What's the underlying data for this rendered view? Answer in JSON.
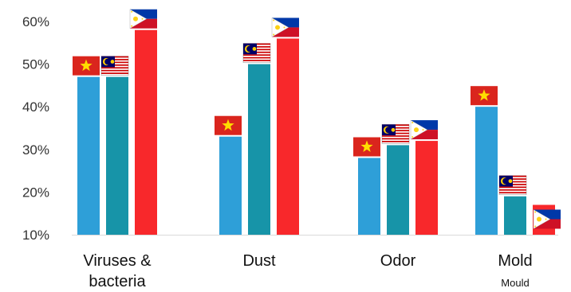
{
  "chart_data": {
    "type": "bar",
    "categories": [
      "Viruses & bacteria",
      "Dust",
      "Odor",
      "Mold"
    ],
    "category_lines": [
      [
        "Viruses &",
        "bacteria"
      ],
      [
        "Dust"
      ],
      [
        "Odor"
      ],
      [
        "Mold"
      ]
    ],
    "category_sublabels": [
      "",
      "",
      "",
      "Mould"
    ],
    "series": [
      {
        "values": [
          47,
          33,
          28,
          40
        ],
        "color": "#2E9FD8",
        "icon": "vietnam-flag-icon"
      },
      {
        "values": [
          47,
          50,
          31,
          19
        ],
        "color": "#1794A8",
        "icon": "malaysia-flag-icon"
      },
      {
        "values": [
          58,
          56,
          32,
          17
        ],
        "color": "#F8282B",
        "icon": "philippines-flag-icon"
      }
    ],
    "yticks": [
      "10%",
      "20%",
      "30%",
      "40%",
      "50%",
      "60%"
    ],
    "ylim": [
      10,
      60
    ],
    "grid": false,
    "title": "",
    "xlabel": "",
    "ylabel": ""
  }
}
